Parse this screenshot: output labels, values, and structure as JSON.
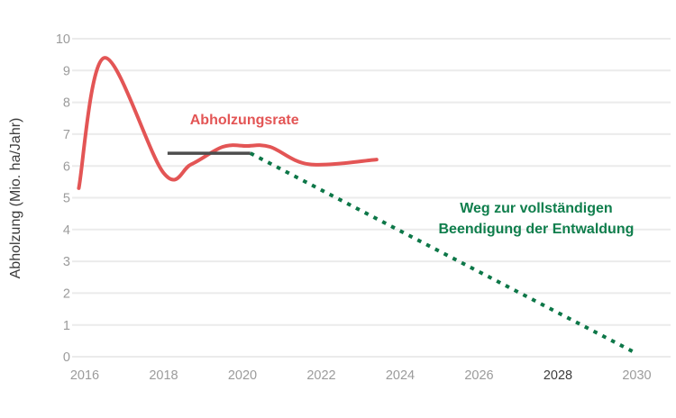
{
  "chart_data": {
    "type": "line",
    "title": "",
    "xlabel": "",
    "ylabel": "Abholzung (Mio. ha/Jahr)",
    "ylim": [
      0,
      10
    ],
    "xlim": [
      2015.6,
      2030.6
    ],
    "grid": "horizontal",
    "legend_position": "none",
    "y_ticks": [
      0,
      1,
      2,
      3,
      4,
      5,
      6,
      7,
      8,
      9,
      10
    ],
    "x_ticks": [
      2016,
      2018,
      2020,
      2022,
      2024,
      2026,
      2028,
      2030
    ],
    "x_tick_emphasized": "2028",
    "series": [
      {
        "name": "Abholzungsrate",
        "style": "smooth-solid",
        "color": "#e35555",
        "points": [
          [
            2015.85,
            5.3
          ],
          [
            2016.5,
            9.4
          ],
          [
            2018.0,
            5.78
          ],
          [
            2018.7,
            6.05
          ],
          [
            2019.5,
            6.6
          ],
          [
            2020.1,
            6.63
          ],
          [
            2020.7,
            6.6
          ],
          [
            2021.7,
            6.05
          ],
          [
            2023.4,
            6.2
          ]
        ]
      },
      {
        "name": "Referenzlinie 2018-2020",
        "style": "solid",
        "color": "#4d4d4d",
        "points": [
          [
            2018.1,
            6.4
          ],
          [
            2020.2,
            6.4
          ]
        ]
      },
      {
        "name": "Weg zur vollständigen Beendigung der Entwaldung",
        "style": "dotted",
        "color": "#0d7748",
        "points": [
          [
            2020.2,
            6.4
          ],
          [
            2030.0,
            0.1
          ]
        ]
      }
    ],
    "annotations": {
      "rate_label": {
        "text": "Abholzungsrate",
        "x": 2020.05,
        "y": 7.45,
        "color": "#e35555"
      },
      "path_label_line1": "Weg zur vollständigen",
      "path_label_line2": "Beendigung der Entwaldung",
      "path_label": {
        "x": 2027.45,
        "y": 4.35,
        "color": "#0f7e4c"
      }
    },
    "colors": {
      "background": "#ffffff",
      "gridline": "#ebebeb",
      "tick_label": "#9b9b9b",
      "tick_label_emphasized": "#3d3d3d",
      "axis_title": "#3c3c3c",
      "rate_line": "#e35555",
      "baseline": "#4d4d4d",
      "path_line": "#0d7748"
    }
  }
}
